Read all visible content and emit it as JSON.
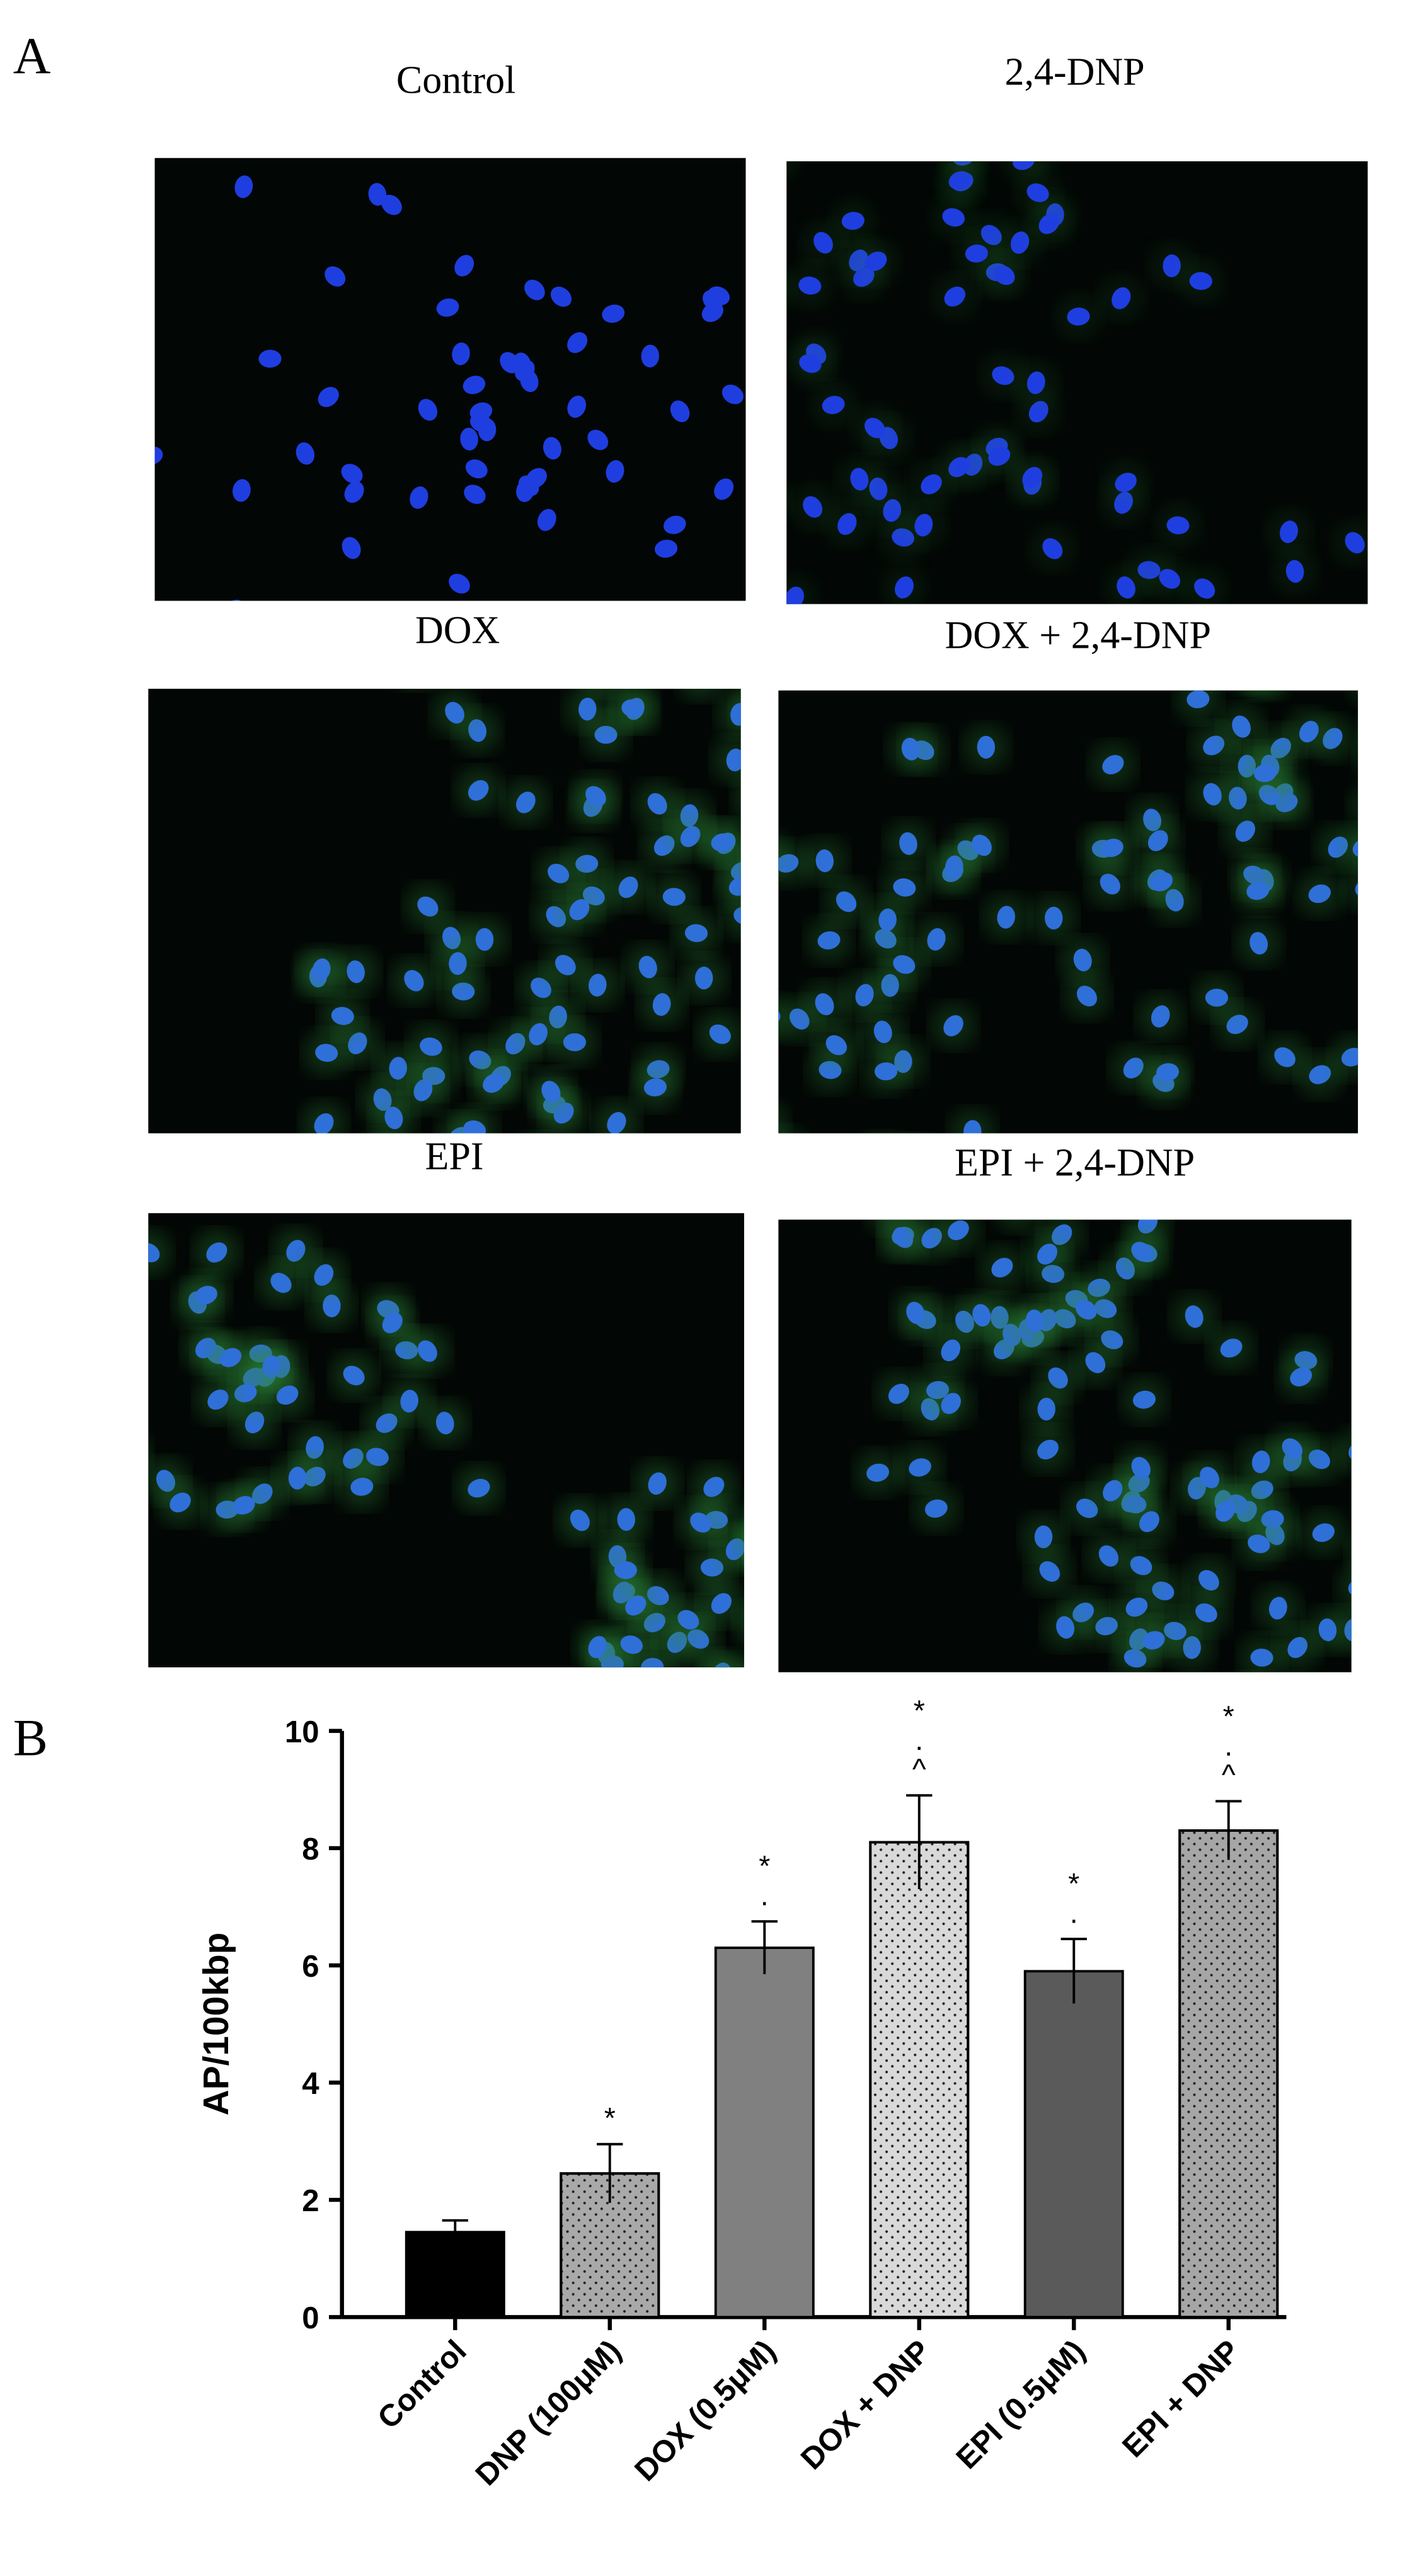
{
  "panel_labels": {
    "a": "A",
    "b": "B"
  },
  "images": [
    {
      "title": "Control"
    },
    {
      "title": "2,4-DNP"
    },
    {
      "title": "DOX"
    },
    {
      "title": "DOX + 2,4-DNP"
    },
    {
      "title": "EPI"
    },
    {
      "title": "EPI + 2,4-DNP"
    }
  ],
  "chart_data": {
    "type": "bar",
    "ylabel": "AP/100kbp",
    "categories": [
      "Control",
      "DNP (100μM)",
      "DOX (0.5μM)",
      "DOX + DNP",
      "EPI (0.5μM)",
      "EPI + DNP"
    ],
    "values": [
      1.45,
      2.45,
      6.3,
      8.1,
      5.9,
      8.3
    ],
    "errors": [
      0.2,
      0.5,
      0.45,
      0.8,
      0.55,
      0.5
    ],
    "colors": [
      "#000000",
      "#a9a9a9",
      "#808080",
      "#d9d9d9",
      "#5a5a5a",
      "#a6a6a6"
    ],
    "patterns": [
      "solid",
      "dots",
      "solid",
      "dots",
      "solid",
      "dots"
    ],
    "annotations": [
      [],
      [
        "*"
      ],
      [
        "*",
        "."
      ],
      [
        "*",
        ".",
        "^"
      ],
      [
        "*",
        "."
      ],
      [
        "*",
        ".",
        "^"
      ]
    ],
    "ylim": [
      0,
      10
    ],
    "yticks": [
      0,
      2,
      4,
      6,
      8,
      10
    ]
  }
}
